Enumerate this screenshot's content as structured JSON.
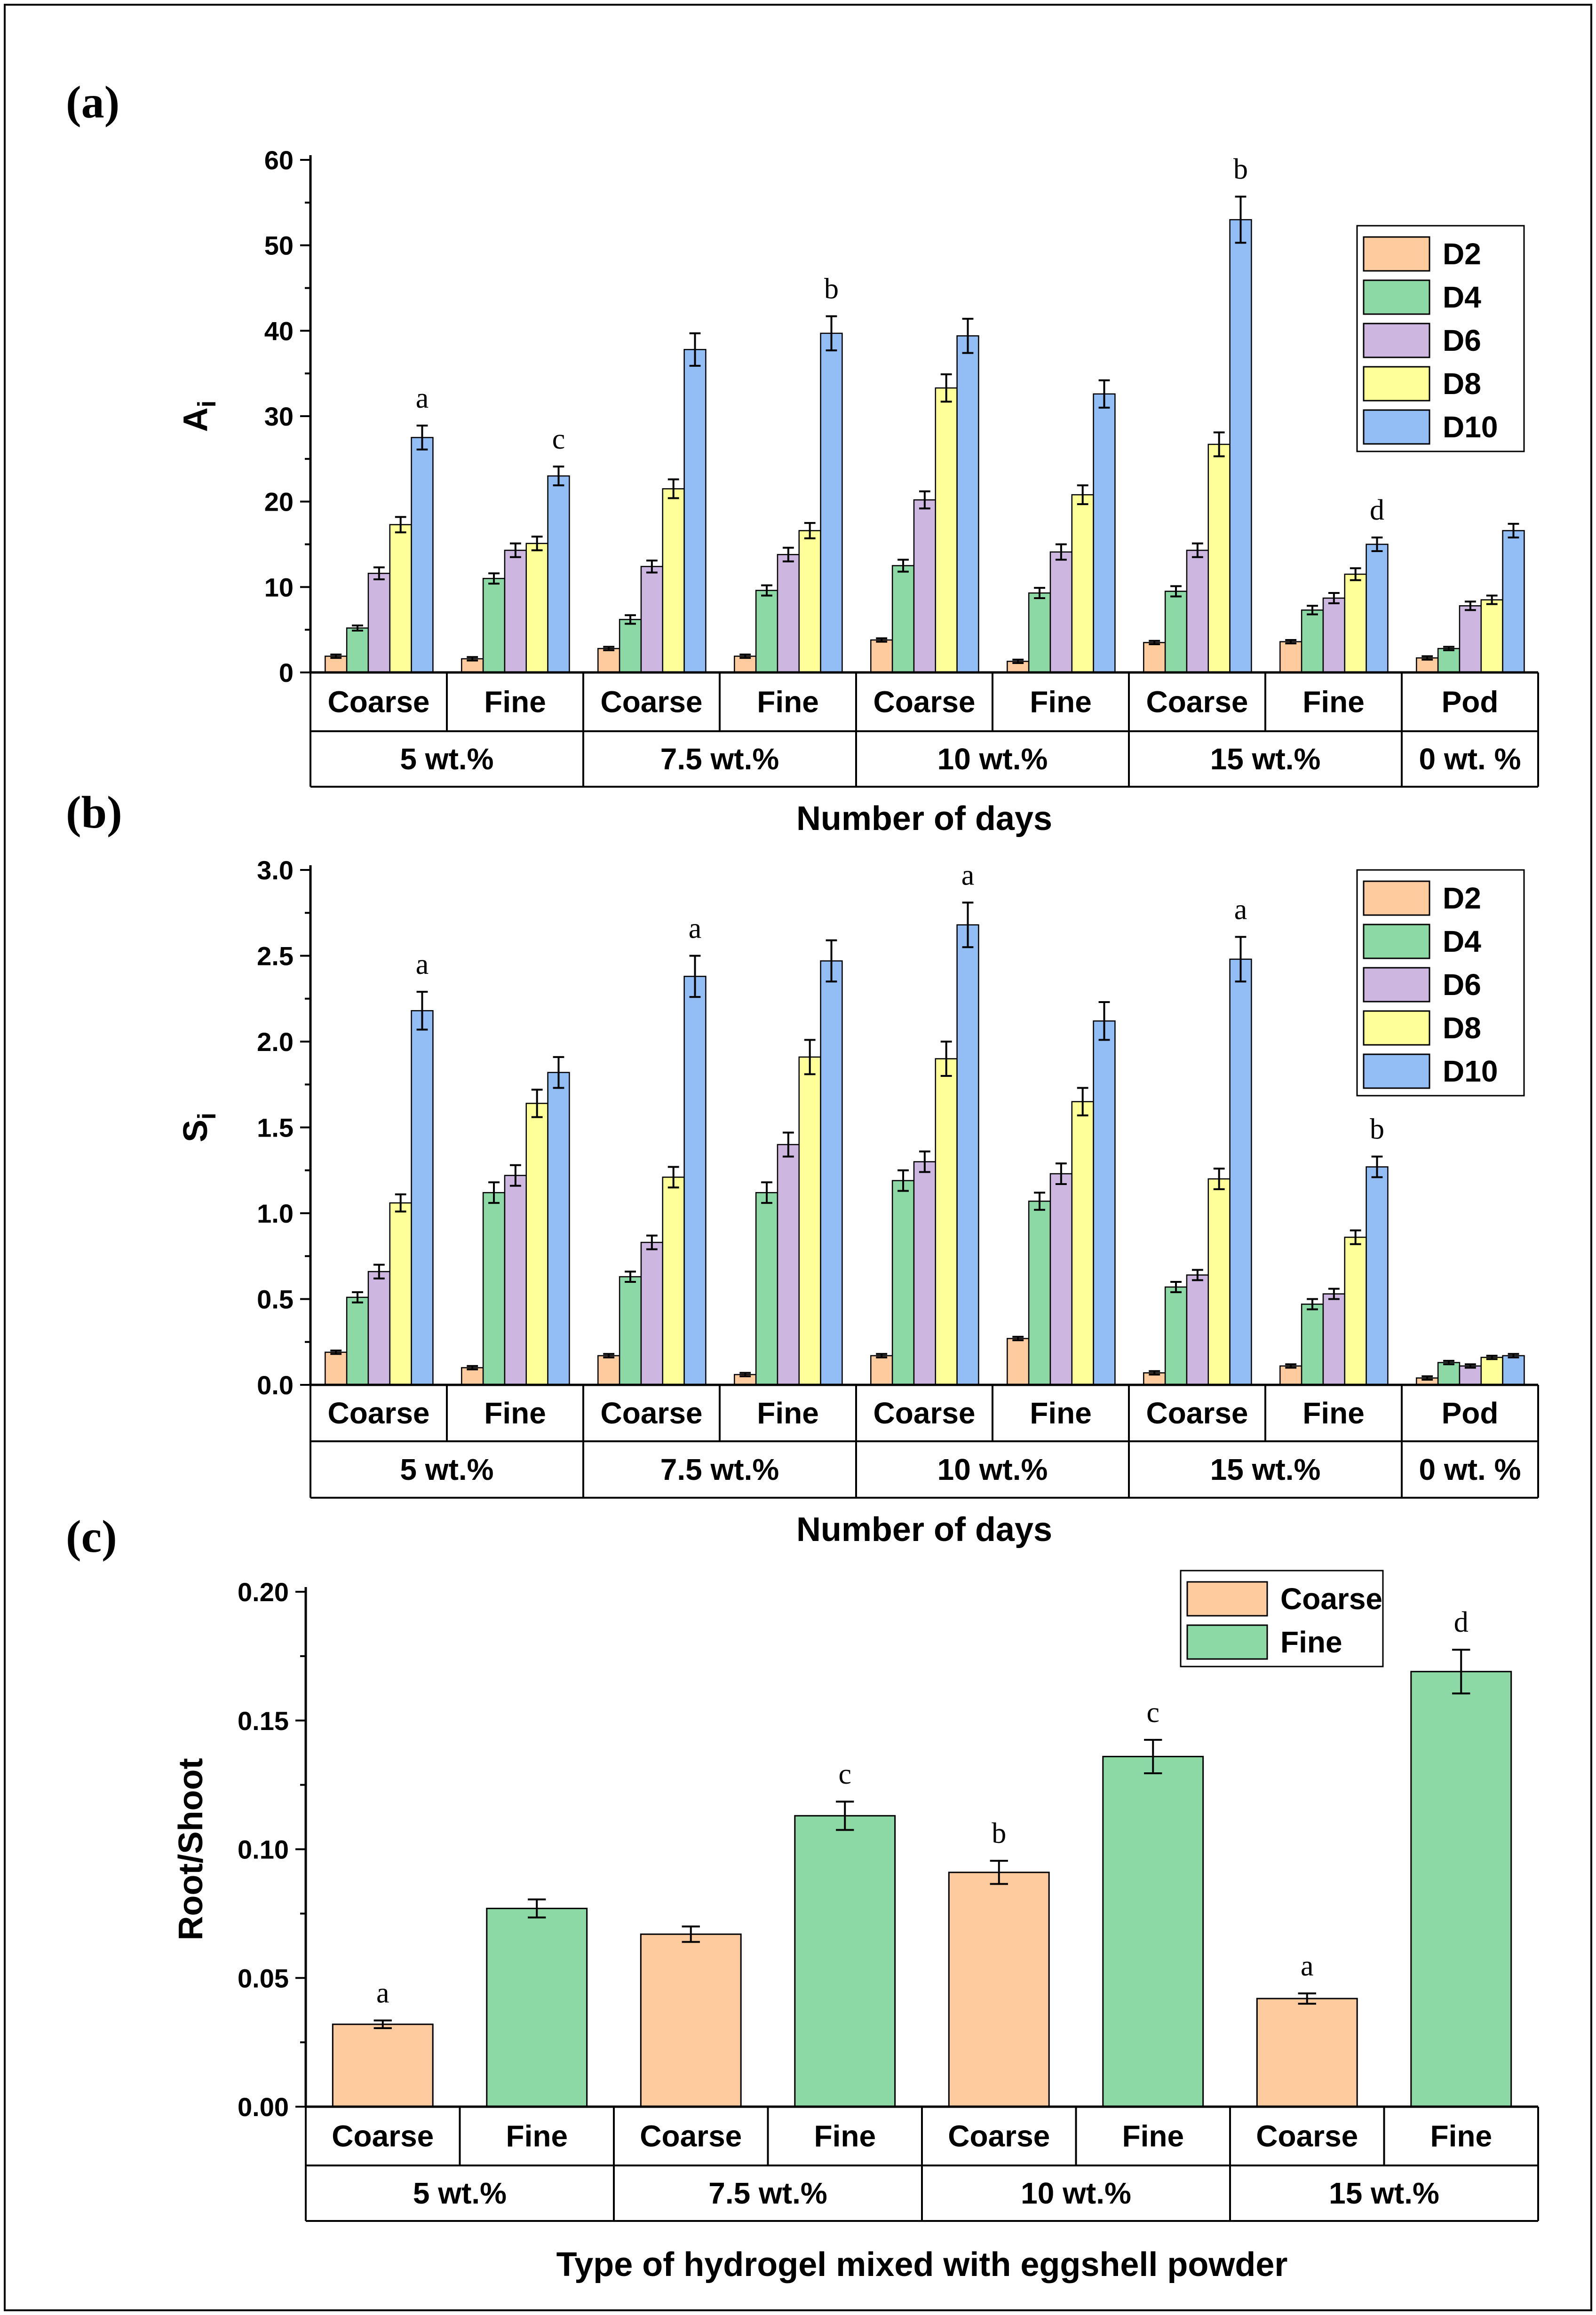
{
  "figure": {
    "panel_labels": [
      "(a)",
      "(b)",
      "(c)"
    ]
  },
  "chart_data": [
    {
      "type": "bar",
      "panel": "(a)",
      "ylabel_main": "A",
      "ylabel_sub": "i",
      "xlabel": "Number of days",
      "ylim": [
        0,
        60
      ],
      "yticks": [
        0,
        10,
        20,
        30,
        40,
        50,
        60
      ],
      "ytick_labels": [
        "0",
        "10",
        "20",
        "30",
        "40",
        "50",
        "60"
      ],
      "categories": [
        "Coarse",
        "Fine",
        "Coarse",
        "Fine",
        "Coarse",
        "Fine",
        "Coarse",
        "Fine",
        "Pod"
      ],
      "groups": [
        {
          "label": "5 wt.%",
          "span": 2
        },
        {
          "label": "7.5 wt.%",
          "span": 2
        },
        {
          "label": "10 wt.%",
          "span": 2
        },
        {
          "label": "15 wt.%",
          "span": 2
        },
        {
          "label": "0 wt. %",
          "span": 1
        }
      ],
      "legend": {
        "position": "top-right"
      },
      "series": [
        {
          "name": "D2",
          "color": "#FDCB9E",
          "values": [
            1.9,
            1.6,
            2.8,
            1.9,
            3.8,
            1.3,
            3.5,
            3.6,
            1.7
          ],
          "errors": [
            0.2,
            0.2,
            0.2,
            0.2,
            0.2,
            0.2,
            0.2,
            0.2,
            0.2
          ]
        },
        {
          "name": "D4",
          "color": "#8CD9A6",
          "values": [
            5.2,
            11.0,
            6.2,
            9.6,
            12.5,
            9.3,
            9.5,
            7.3,
            2.8
          ],
          "errors": [
            0.3,
            0.6,
            0.5,
            0.6,
            0.7,
            0.6,
            0.6,
            0.5,
            0.2
          ]
        },
        {
          "name": "D6",
          "color": "#CDB6E0",
          "values": [
            11.6,
            14.3,
            12.4,
            13.8,
            20.2,
            14.1,
            14.3,
            8.7,
            7.8
          ],
          "errors": [
            0.7,
            0.8,
            0.7,
            0.8,
            1.0,
            0.9,
            0.8,
            0.6,
            0.5
          ]
        },
        {
          "name": "D8",
          "color": "#FFFF99",
          "values": [
            17.3,
            15.1,
            21.5,
            16.6,
            33.3,
            20.8,
            26.7,
            11.5,
            8.5
          ],
          "errors": [
            0.9,
            0.8,
            1.1,
            0.9,
            1.6,
            1.1,
            1.4,
            0.7,
            0.5
          ]
        },
        {
          "name": "D10",
          "color": "#92BDF5",
          "values": [
            27.5,
            23.0,
            37.8,
            39.7,
            39.4,
            32.6,
            53.0,
            15.0,
            16.6
          ],
          "errors": [
            1.4,
            1.1,
            1.9,
            2.0,
            2.0,
            1.6,
            2.7,
            0.8,
            0.8
          ]
        }
      ],
      "annotations": [
        {
          "category_index": 0,
          "series": "D10",
          "text": "a"
        },
        {
          "category_index": 1,
          "series": "D10",
          "text": "c"
        },
        {
          "category_index": 3,
          "series": "D10",
          "text": "b"
        },
        {
          "category_index": 6,
          "series": "D10",
          "text": "b"
        },
        {
          "category_index": 7,
          "series": "D10",
          "text": "d"
        }
      ]
    },
    {
      "type": "bar",
      "panel": "(b)",
      "ylabel_main": "S",
      "ylabel_sub": "i",
      "xlabel": "Number of days",
      "ylim": [
        0,
        3.0
      ],
      "yticks": [
        0,
        0.5,
        1.0,
        1.5,
        2.0,
        2.5,
        3.0
      ],
      "ytick_labels": [
        "0.0",
        "0.5",
        "1.0",
        "1.5",
        "2.0",
        "2.5",
        "3.0"
      ],
      "categories": [
        "Coarse",
        "Fine",
        "Coarse",
        "Fine",
        "Coarse",
        "Fine",
        "Coarse",
        "Fine",
        "Pod"
      ],
      "groups": [
        {
          "label": "5 wt.%",
          "span": 2
        },
        {
          "label": "7.5 wt.%",
          "span": 2
        },
        {
          "label": "10 wt.%",
          "span": 2
        },
        {
          "label": "15 wt.%",
          "span": 2
        },
        {
          "label": "0 wt. %",
          "span": 1
        }
      ],
      "legend": {
        "position": "top-right"
      },
      "series": [
        {
          "name": "D2",
          "color": "#FDCB9E",
          "values": [
            0.19,
            0.1,
            0.17,
            0.06,
            0.17,
            0.27,
            0.07,
            0.11,
            0.04
          ],
          "errors": [
            0.01,
            0.01,
            0.01,
            0.01,
            0.01,
            0.01,
            0.01,
            0.01,
            0.01
          ]
        },
        {
          "name": "D4",
          "color": "#8CD9A6",
          "values": [
            0.51,
            1.12,
            0.63,
            1.12,
            1.19,
            1.07,
            0.57,
            0.47,
            0.13
          ],
          "errors": [
            0.03,
            0.06,
            0.03,
            0.06,
            0.06,
            0.05,
            0.03,
            0.03,
            0.01
          ]
        },
        {
          "name": "D6",
          "color": "#CDB6E0",
          "values": [
            0.66,
            1.22,
            0.83,
            1.4,
            1.3,
            1.23,
            0.64,
            0.53,
            0.11
          ],
          "errors": [
            0.04,
            0.06,
            0.04,
            0.07,
            0.06,
            0.06,
            0.03,
            0.03,
            0.01
          ]
        },
        {
          "name": "D8",
          "color": "#FFFF99",
          "values": [
            1.06,
            1.64,
            1.21,
            1.91,
            1.9,
            1.65,
            1.2,
            0.86,
            0.16
          ],
          "errors": [
            0.05,
            0.08,
            0.06,
            0.1,
            0.1,
            0.08,
            0.06,
            0.04,
            0.01
          ]
        },
        {
          "name": "D10",
          "color": "#92BDF5",
          "values": [
            2.18,
            1.82,
            2.38,
            2.47,
            2.68,
            2.12,
            2.48,
            1.27,
            0.17
          ],
          "errors": [
            0.11,
            0.09,
            0.12,
            0.12,
            0.13,
            0.11,
            0.13,
            0.06,
            0.01
          ]
        }
      ],
      "annotations": [
        {
          "category_index": 0,
          "series": "D10",
          "text": "a"
        },
        {
          "category_index": 2,
          "series": "D10",
          "text": "a"
        },
        {
          "category_index": 4,
          "series": "D10",
          "text": "a"
        },
        {
          "category_index": 6,
          "series": "D10",
          "text": "a"
        },
        {
          "category_index": 7,
          "series": "D10",
          "text": "b"
        }
      ]
    },
    {
      "type": "bar",
      "panel": "(c)",
      "ylabel_main": "Root/Shoot",
      "ylabel_sub": "",
      "xlabel": "Type of hydrogel mixed with eggshell powder",
      "ylim": [
        0,
        0.2
      ],
      "yticks": [
        0,
        0.05,
        0.1,
        0.15,
        0.2
      ],
      "ytick_labels": [
        "0.00",
        "0.05",
        "0.10",
        "0.15",
        "0.20"
      ],
      "categories": [
        "Coarse",
        "Fine",
        "Coarse",
        "Fine",
        "Coarse",
        "Fine",
        "Coarse",
        "Fine"
      ],
      "groups": [
        {
          "label": "5 wt.%",
          "span": 2
        },
        {
          "label": "7.5 wt.%",
          "span": 2
        },
        {
          "label": "10 wt.%",
          "span": 2
        },
        {
          "label": "15 wt.%",
          "span": 2
        }
      ],
      "legend": {
        "position": "top-right"
      },
      "series": [
        {
          "name": "Coarse",
          "color": "#FDCB9E"
        },
        {
          "name": "Fine",
          "color": "#8CD9A6"
        }
      ],
      "values": [
        0.032,
        0.077,
        0.067,
        0.113,
        0.091,
        0.136,
        0.042,
        0.169
      ],
      "errors": [
        0.0015,
        0.0035,
        0.003,
        0.0055,
        0.0045,
        0.0065,
        0.002,
        0.0085
      ],
      "bar_series": [
        "Coarse",
        "Fine",
        "Coarse",
        "Fine",
        "Coarse",
        "Fine",
        "Coarse",
        "Fine"
      ],
      "annotations": [
        {
          "category_index": 0,
          "text": "a"
        },
        {
          "category_index": 3,
          "text": "c"
        },
        {
          "category_index": 4,
          "text": "b"
        },
        {
          "category_index": 5,
          "text": "c"
        },
        {
          "category_index": 6,
          "text": "a"
        },
        {
          "category_index": 7,
          "text": "d"
        }
      ]
    }
  ]
}
